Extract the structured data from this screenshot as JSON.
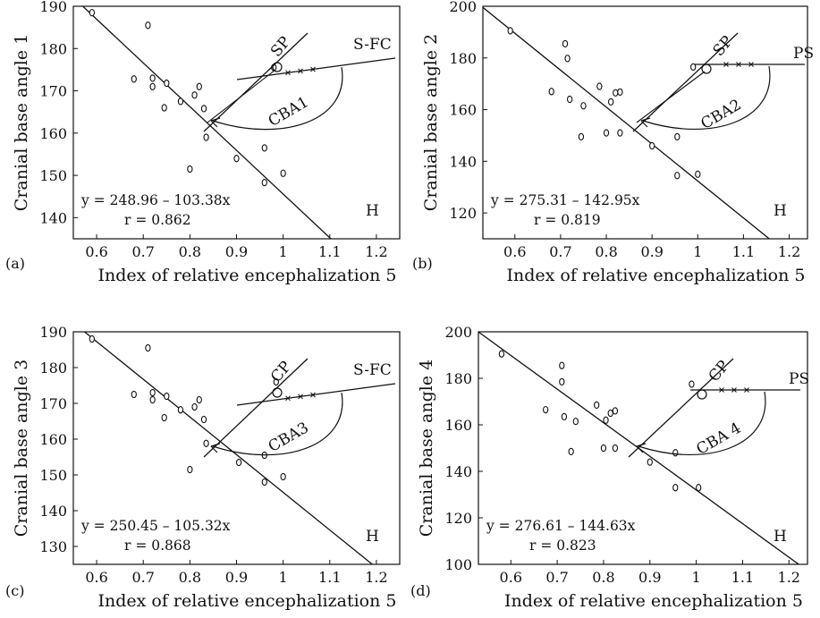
{
  "chart_data": [
    {
      "type": "scatter",
      "panel_label": "(a)",
      "xlabel": "Index of relative encephalization 5",
      "ylabel": "Cranial base angle 1",
      "xlim": [
        0.55,
        1.25
      ],
      "ylim": [
        135,
        190
      ],
      "xticks": [
        0.6,
        0.7,
        0.8,
        0.9,
        1.0,
        1.1,
        1.2
      ],
      "xtick_labels": [
        "0.6",
        "0.7",
        "0.8",
        "0.9",
        "1",
        "1.1",
        "1.2"
      ],
      "yticks": [
        140,
        150,
        160,
        170,
        180,
        190
      ],
      "ytick_labels": [
        "140",
        "150",
        "160",
        "170",
        "180",
        "190"
      ],
      "equation": "y = 248.96 – 103.38x",
      "r": "r = 0.862",
      "regression": {
        "intercept": 248.96,
        "slope": -103.38
      },
      "corner_label": "H",
      "inset": {
        "labels": [
          "SP",
          "S-FC",
          "CBA1"
        ]
      },
      "points": [
        [
          0.59,
          188.5
        ],
        [
          0.68,
          172.8
        ],
        [
          0.71,
          185.5
        ],
        [
          0.72,
          173.0
        ],
        [
          0.72,
          171.0
        ],
        [
          0.745,
          166.0
        ],
        [
          0.75,
          171.8
        ],
        [
          0.78,
          167.5
        ],
        [
          0.8,
          151.5
        ],
        [
          0.81,
          169.0
        ],
        [
          0.82,
          171.0
        ],
        [
          0.83,
          165.8
        ],
        [
          0.835,
          159.0
        ],
        [
          0.9,
          154.0
        ],
        [
          0.96,
          156.5
        ],
        [
          0.96,
          148.3
        ],
        [
          0.98,
          175.5
        ],
        [
          1.0,
          150.5
        ]
      ]
    },
    {
      "type": "scatter",
      "panel_label": "(b)",
      "xlabel": "Index of relative encephalization 5",
      "ylabel": "Cranial base angle 2",
      "xlim": [
        0.53,
        1.24
      ],
      "ylim": [
        110,
        200
      ],
      "xticks": [
        0.6,
        0.7,
        0.8,
        0.9,
        1.0,
        1.1,
        1.2
      ],
      "xtick_labels": [
        "0.6",
        "0.7",
        "0.8",
        "0.9",
        "1",
        "1.1",
        "1.2"
      ],
      "yticks": [
        120,
        140,
        160,
        180,
        200
      ],
      "ytick_labels": [
        "120",
        "140",
        "160",
        "180",
        "200"
      ],
      "equation": "y = 275.31 – 142.95x",
      "r": "r = 0.819",
      "regression": {
        "intercept": 275.31,
        "slope": -142.95
      },
      "corner_label": "H",
      "inset": {
        "labels": [
          "SP",
          "PS",
          "CBA2"
        ]
      },
      "points": [
        [
          0.59,
          190.5
        ],
        [
          0.68,
          167.0
        ],
        [
          0.71,
          185.5
        ],
        [
          0.715,
          179.8
        ],
        [
          0.72,
          164.0
        ],
        [
          0.745,
          149.5
        ],
        [
          0.75,
          161.5
        ],
        [
          0.785,
          169.0
        ],
        [
          0.8,
          151.0
        ],
        [
          0.81,
          163.0
        ],
        [
          0.82,
          166.5
        ],
        [
          0.83,
          166.8
        ],
        [
          0.83,
          151.0
        ],
        [
          0.9,
          146.0
        ],
        [
          0.955,
          149.5
        ],
        [
          0.955,
          134.5
        ],
        [
          0.99,
          176.5
        ],
        [
          1.0,
          135.0
        ]
      ]
    },
    {
      "type": "scatter",
      "panel_label": "(c)",
      "xlabel": "Index of relative encephalization 5",
      "ylabel": "Cranial base angle 3",
      "xlim": [
        0.55,
        1.25
      ],
      "ylim": [
        125,
        190
      ],
      "xticks": [
        0.6,
        0.7,
        0.8,
        0.9,
        1.0,
        1.1,
        1.2
      ],
      "xtick_labels": [
        "0.6",
        "0.7",
        "0.8",
        "0.9",
        "1",
        "1.1",
        "1.2"
      ],
      "yticks": [
        130,
        140,
        150,
        160,
        170,
        180,
        190
      ],
      "ytick_labels": [
        "130",
        "140",
        "150",
        "160",
        "170",
        "180",
        "190"
      ],
      "equation": "y = 250.45 – 105.32x",
      "r": "r = 0.868",
      "regression": {
        "intercept": 250.45,
        "slope": -105.32
      },
      "corner_label": "H",
      "inset": {
        "labels": [
          "CP",
          "S-FC",
          "CBA3"
        ]
      },
      "points": [
        [
          0.59,
          188.0
        ],
        [
          0.68,
          172.5
        ],
        [
          0.71,
          185.5
        ],
        [
          0.72,
          173.0
        ],
        [
          0.72,
          171.0
        ],
        [
          0.745,
          166.0
        ],
        [
          0.75,
          172.0
        ],
        [
          0.78,
          168.2
        ],
        [
          0.8,
          151.5
        ],
        [
          0.81,
          169.0
        ],
        [
          0.82,
          171.0
        ],
        [
          0.83,
          165.5
        ],
        [
          0.835,
          158.8
        ],
        [
          0.905,
          153.5
        ],
        [
          0.96,
          155.5
        ],
        [
          0.96,
          148.0
        ],
        [
          0.985,
          176.0
        ],
        [
          1.0,
          149.5
        ]
      ]
    },
    {
      "type": "scatter",
      "panel_label": "(d)",
      "xlabel": "Index of relative encephalization 5",
      "ylabel": "Cranial base angle 4",
      "xlim": [
        0.53,
        1.24
      ],
      "ylim": [
        100,
        200
      ],
      "xticks": [
        0.6,
        0.7,
        0.8,
        0.9,
        1.0,
        1.1,
        1.2
      ],
      "xtick_labels": [
        "0.6",
        "0.7",
        "0.8",
        "0.9",
        "1",
        "1.1",
        "1.2"
      ],
      "yticks": [
        100,
        120,
        140,
        160,
        180,
        200
      ],
      "ytick_labels": [
        "100",
        "120",
        "140",
        "160",
        "180",
        "200"
      ],
      "equation": "y = 276.61 – 144.63x",
      "r": "r = 0.823",
      "regression": {
        "intercept": 276.61,
        "slope": -144.63
      },
      "corner_label": "H",
      "inset": {
        "labels": [
          "CP",
          "PS",
          "CBA 4"
        ]
      },
      "points": [
        [
          0.58,
          190.5
        ],
        [
          0.675,
          166.5
        ],
        [
          0.71,
          185.5
        ],
        [
          0.71,
          178.5
        ],
        [
          0.715,
          163.5
        ],
        [
          0.73,
          148.5
        ],
        [
          0.74,
          161.5
        ],
        [
          0.785,
          168.5
        ],
        [
          0.8,
          150.0
        ],
        [
          0.805,
          162.0
        ],
        [
          0.815,
          165.0
        ],
        [
          0.825,
          166.0
        ],
        [
          0.825,
          150.0
        ],
        [
          0.9,
          144.0
        ],
        [
          0.955,
          148.0
        ],
        [
          0.955,
          133.0
        ],
        [
          0.99,
          177.5
        ],
        [
          1.005,
          133.0
        ]
      ]
    }
  ]
}
